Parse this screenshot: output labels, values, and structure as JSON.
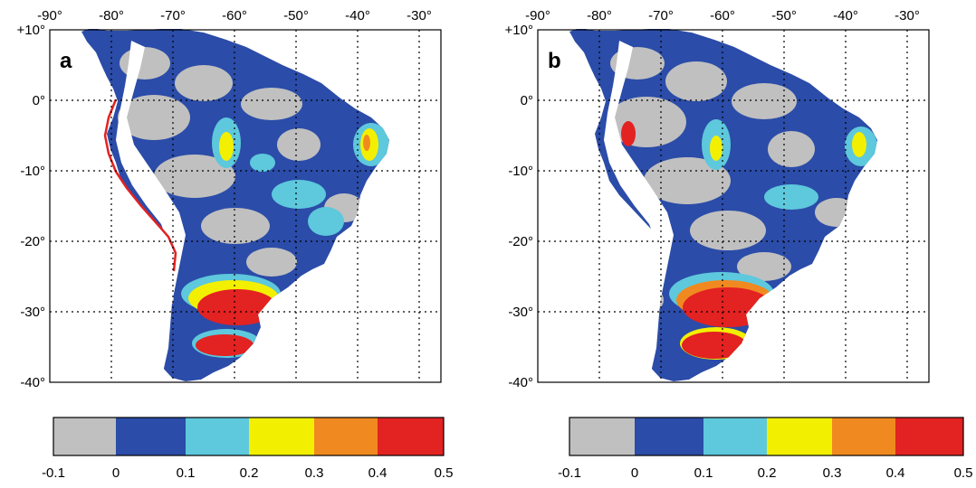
{
  "panels": [
    {
      "label": "a",
      "lon_ticks": [
        "-90°",
        "-80°",
        "-70°",
        "-60°",
        "-50°",
        "-40°",
        "-30°"
      ],
      "lat_ticks": [
        "+10°",
        "0°",
        "-10°",
        "-20°",
        "-30°",
        "-40°"
      ],
      "colorbar_ticks": [
        "-0.1",
        "0",
        "0.1",
        "0.2",
        "0.3",
        "0.4",
        "0.5"
      ]
    },
    {
      "label": "b",
      "lon_ticks": [
        "-90°",
        "-80°",
        "-70°",
        "-60°",
        "-50°",
        "-40°",
        "-30°"
      ],
      "lat_ticks": [
        "+10°",
        "0°",
        "-10°",
        "-20°",
        "-30°",
        "-40°"
      ],
      "colorbar_ticks": [
        "-0.1",
        "0",
        "0.1",
        "0.2",
        "0.3",
        "0.4",
        "0.5"
      ]
    }
  ],
  "map_extent": {
    "lon": [
      -90,
      -26
    ],
    "lat": [
      -40,
      10
    ]
  },
  "colorbar": {
    "bins": [
      [
        -0.1,
        0
      ],
      [
        0,
        0.1
      ],
      [
        0.1,
        0.2
      ],
      [
        0.2,
        0.3
      ],
      [
        0.3,
        0.4
      ],
      [
        0.4,
        0.5
      ]
    ],
    "colors": [
      "#c0c0c0",
      "#2b4ca8",
      "#5ec8dc",
      "#f2f000",
      "#f08a20",
      "#e32222"
    ]
  },
  "colors": {
    "land_gray": "#c0c0c0",
    "land_blue": "#2b4ca8",
    "cyan": "#5ec8dc",
    "yellow": "#f2f000",
    "orange": "#f08a20",
    "red": "#e32222",
    "andes_white": "#ffffff"
  }
}
